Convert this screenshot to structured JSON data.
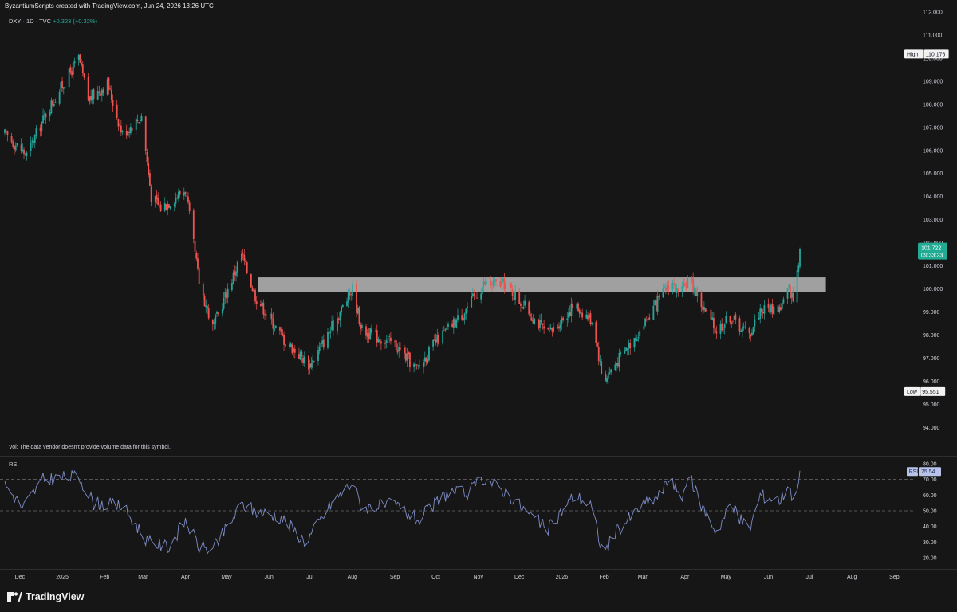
{
  "header": {
    "credit": "ByzantiumScripts created with TradingView.com, Jun 24, 2026 13:26 UTC"
  },
  "symbol": {
    "name": "DXY · 1D · TVC",
    "change": "+0.323 (+0.32%)"
  },
  "price_axis": {
    "ticks": [
      "112.000",
      "111.000",
      "110.000",
      "109.000",
      "108.000",
      "107.000",
      "106.000",
      "105.000",
      "104.000",
      "103.000",
      "102.000",
      "101.000",
      "100.000",
      "99.000",
      "98.000",
      "97.000",
      "96.000",
      "95.000",
      "94.000"
    ],
    "high_label": "High",
    "high_value": "110.176",
    "low_label": "Low",
    "low_value": "95.551",
    "last_price": "101.722",
    "countdown": "09:33:23"
  },
  "volume_note": "Vol: The data vendor doesn't provide volume data for this symbol.",
  "rsi": {
    "label": "RSI",
    "badge_label": "RSI",
    "badge_value": "75.54",
    "ticks": [
      "80.00",
      "70.00",
      "60.00",
      "50.00",
      "40.00",
      "30.00",
      "20.00"
    ]
  },
  "time_axis": {
    "labels": [
      "Dec",
      "2025",
      "Feb",
      "Mar",
      "Apr",
      "May",
      "Jun",
      "Jul",
      "Aug",
      "Sep",
      "Oct",
      "Nov",
      "Dec",
      "2026",
      "Feb",
      "Mar",
      "Apr",
      "May",
      "Jun",
      "Jul",
      "Aug",
      "Sep"
    ]
  },
  "colors": {
    "up": "#26a69a",
    "down": "#ef5350",
    "rsi_line": "#7e8cc6",
    "zone": "#c8c8c8",
    "last_price_bg": "#22ab94"
  },
  "chart_data": {
    "type": "candlestick",
    "symbol": "DXY",
    "interval": "1D",
    "high": 110.176,
    "low": 95.551,
    "last": 101.722,
    "resistance_zone": [
      99.85,
      100.5
    ],
    "ylim": [
      93.7,
      112.0
    ],
    "rsi_ylim": [
      17,
      82
    ],
    "rsi_last": 75.54,
    "rsi_levels": [
      70,
      50
    ],
    "close_path": [
      {
        "date": "2024-11-20",
        "close": 106.7
      },
      {
        "date": "2024-12-06",
        "close": 105.8
      },
      {
        "date": "2024-12-20",
        "close": 107.6
      },
      {
        "date": "2025-01-13",
        "close": 110.0
      },
      {
        "date": "2025-01-20",
        "close": 108.2
      },
      {
        "date": "2025-02-03",
        "close": 108.9
      },
      {
        "date": "2025-02-14",
        "close": 106.7
      },
      {
        "date": "2025-02-28",
        "close": 107.5
      },
      {
        "date": "2025-03-07",
        "close": 104.0
      },
      {
        "date": "2025-03-14",
        "close": 103.5
      },
      {
        "date": "2025-04-01",
        "close": 104.3
      },
      {
        "date": "2025-04-11",
        "close": 100.3
      },
      {
        "date": "2025-04-21",
        "close": 98.3
      },
      {
        "date": "2025-05-12",
        "close": 101.5
      },
      {
        "date": "2025-05-22",
        "close": 99.7
      },
      {
        "date": "2025-06-12",
        "close": 97.8
      },
      {
        "date": "2025-07-01",
        "close": 96.7
      },
      {
        "date": "2025-07-14",
        "close": 98.0
      },
      {
        "date": "2025-08-01",
        "close": 100.0
      },
      {
        "date": "2025-08-08",
        "close": 98.2
      },
      {
        "date": "2025-09-01",
        "close": 97.6
      },
      {
        "date": "2025-09-17",
        "close": 96.5
      },
      {
        "date": "2025-10-01",
        "close": 97.7
      },
      {
        "date": "2025-10-20",
        "close": 98.9
      },
      {
        "date": "2025-11-05",
        "close": 100.2
      },
      {
        "date": "2025-11-21",
        "close": 100.2
      },
      {
        "date": "2025-12-08",
        "close": 99.0
      },
      {
        "date": "2025-12-22",
        "close": 98.0
      },
      {
        "date": "2026-01-10",
        "close": 99.3
      },
      {
        "date": "2026-01-24",
        "close": 98.6
      },
      {
        "date": "2026-01-31",
        "close": 96.0
      },
      {
        "date": "2026-02-11",
        "close": 96.9
      },
      {
        "date": "2026-02-28",
        "close": 98.3
      },
      {
        "date": "2026-03-14",
        "close": 99.6
      },
      {
        "date": "2026-03-22",
        "close": 100.4
      },
      {
        "date": "2026-03-28",
        "close": 99.6
      },
      {
        "date": "2026-04-04",
        "close": 100.5
      },
      {
        "date": "2026-04-14",
        "close": 99.2
      },
      {
        "date": "2026-04-24",
        "close": 98.2
      },
      {
        "date": "2026-05-04",
        "close": 98.8
      },
      {
        "date": "2026-05-18",
        "close": 98.0
      },
      {
        "date": "2026-05-26",
        "close": 99.1
      },
      {
        "date": "2026-06-10",
        "close": 99.2
      },
      {
        "date": "2026-06-16",
        "close": 100.0
      },
      {
        "date": "2026-06-19",
        "close": 99.5
      },
      {
        "date": "2026-06-24",
        "close": 101.722
      }
    ],
    "rsi_path": [
      {
        "date": "2024-11-20",
        "rsi": 67
      },
      {
        "date": "2024-12-03",
        "rsi": 52
      },
      {
        "date": "2024-12-18",
        "rsi": 70
      },
      {
        "date": "2025-01-13",
        "rsi": 72
      },
      {
        "date": "2025-01-24",
        "rsi": 55
      },
      {
        "date": "2025-02-14",
        "rsi": 53
      },
      {
        "date": "2025-03-05",
        "rsi": 30
      },
      {
        "date": "2025-03-20",
        "rsi": 27
      },
      {
        "date": "2025-04-01",
        "rsi": 44
      },
      {
        "date": "2025-04-11",
        "rsi": 27
      },
      {
        "date": "2025-04-21",
        "rsi": 25
      },
      {
        "date": "2025-05-12",
        "rsi": 54
      },
      {
        "date": "2025-05-22",
        "rsi": 50
      },
      {
        "date": "2025-06-10",
        "rsi": 46
      },
      {
        "date": "2025-06-28",
        "rsi": 30
      },
      {
        "date": "2025-07-17",
        "rsi": 55
      },
      {
        "date": "2025-08-01",
        "rsi": 68
      },
      {
        "date": "2025-08-08",
        "rsi": 52
      },
      {
        "date": "2025-09-01",
        "rsi": 54
      },
      {
        "date": "2025-09-18",
        "rsi": 44
      },
      {
        "date": "2025-10-10",
        "rsi": 62
      },
      {
        "date": "2025-10-24",
        "rsi": 61
      },
      {
        "date": "2025-11-05",
        "rsi": 71
      },
      {
        "date": "2025-11-21",
        "rsi": 62
      },
      {
        "date": "2025-12-08",
        "rsi": 48
      },
      {
        "date": "2025-12-22",
        "rsi": 38
      },
      {
        "date": "2026-01-10",
        "rsi": 60
      },
      {
        "date": "2026-01-22",
        "rsi": 54
      },
      {
        "date": "2026-01-31",
        "rsi": 23
      },
      {
        "date": "2026-02-11",
        "rsi": 38
      },
      {
        "date": "2026-02-28",
        "rsi": 53
      },
      {
        "date": "2026-03-14",
        "rsi": 60
      },
      {
        "date": "2026-03-22",
        "rsi": 74
      },
      {
        "date": "2026-03-28",
        "rsi": 55
      },
      {
        "date": "2026-04-04",
        "rsi": 72
      },
      {
        "date": "2026-04-14",
        "rsi": 52
      },
      {
        "date": "2026-04-24",
        "rsi": 37
      },
      {
        "date": "2026-05-04",
        "rsi": 53
      },
      {
        "date": "2026-05-18",
        "rsi": 38
      },
      {
        "date": "2026-05-26",
        "rsi": 60
      },
      {
        "date": "2026-06-10",
        "rsi": 57
      },
      {
        "date": "2026-06-16",
        "rsi": 68
      },
      {
        "date": "2026-06-19",
        "rsi": 55
      },
      {
        "date": "2026-06-24",
        "rsi": 75.54
      }
    ]
  }
}
